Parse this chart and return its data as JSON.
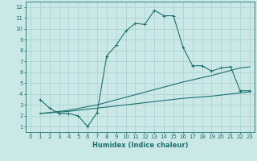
{
  "xlabel": "Humidex (Indice chaleur)",
  "xlim": [
    -0.5,
    23.5
  ],
  "ylim": [
    0.5,
    12.5
  ],
  "xticks": [
    0,
    1,
    2,
    3,
    4,
    5,
    6,
    7,
    8,
    9,
    10,
    11,
    12,
    13,
    14,
    15,
    16,
    17,
    18,
    19,
    20,
    21,
    22,
    23
  ],
  "yticks": [
    1,
    2,
    3,
    4,
    5,
    6,
    7,
    8,
    9,
    10,
    11,
    12
  ],
  "bg_color": "#c9e8e6",
  "line_color": "#1e7070",
  "line1_x": [
    1,
    2,
    3,
    4,
    5,
    6,
    7,
    8,
    9,
    10,
    11,
    12,
    13,
    14,
    15,
    16,
    17,
    18,
    19,
    20,
    21,
    22,
    23
  ],
  "line1_y": [
    3.5,
    2.7,
    2.2,
    2.2,
    2.0,
    1.0,
    2.3,
    7.5,
    8.5,
    9.8,
    10.5,
    10.4,
    11.7,
    11.2,
    11.2,
    8.3,
    6.6,
    6.6,
    6.1,
    6.4,
    6.5,
    4.3,
    4.3
  ],
  "line2_x": [
    1,
    4,
    7,
    10,
    13,
    16,
    19,
    22,
    23
  ],
  "line2_y": [
    2.2,
    2.5,
    3.0,
    3.7,
    4.4,
    5.1,
    5.7,
    6.4,
    6.5
  ],
  "line3_x": [
    1,
    4,
    7,
    10,
    13,
    16,
    19,
    22,
    23
  ],
  "line3_y": [
    2.2,
    2.4,
    2.7,
    3.0,
    3.3,
    3.6,
    3.8,
    4.1,
    4.2
  ],
  "grid_color": "#aed4d2",
  "tick_fontsize": 5.0,
  "xlabel_fontsize": 6.0
}
